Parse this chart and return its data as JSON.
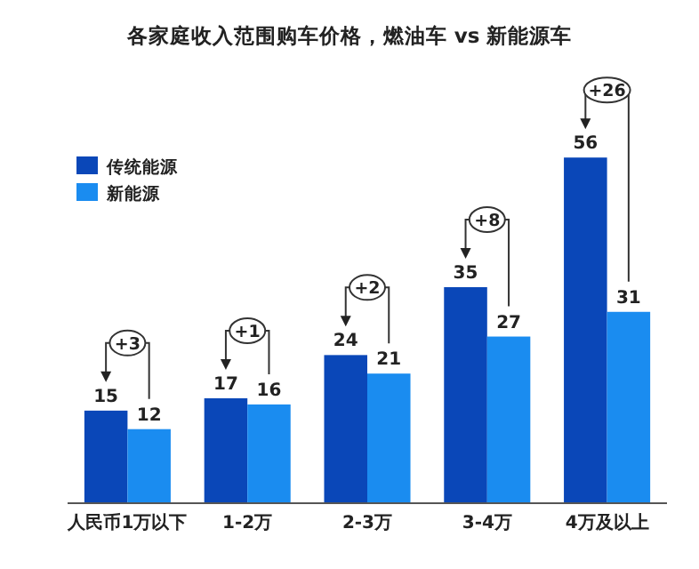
{
  "chart_data": {
    "type": "bar",
    "title": "各家庭收入范围购车价格，燃油车 vs 新能源车",
    "categories": [
      "人民币1万以下",
      "1-2万",
      "2-3万",
      "3-4万",
      "4万及以上"
    ],
    "series": [
      {
        "name": "传统能源",
        "color": "#0a47b8",
        "values": [
          15,
          17,
          24,
          35,
          56
        ]
      },
      {
        "name": "新能源",
        "color": "#1a8cf0",
        "values": [
          12,
          16,
          21,
          27,
          31
        ]
      }
    ],
    "data_labels": true,
    "legend": "top left",
    "annotations": [
      "+3",
      "+1",
      "+2",
      "+8",
      "+26"
    ]
  }
}
